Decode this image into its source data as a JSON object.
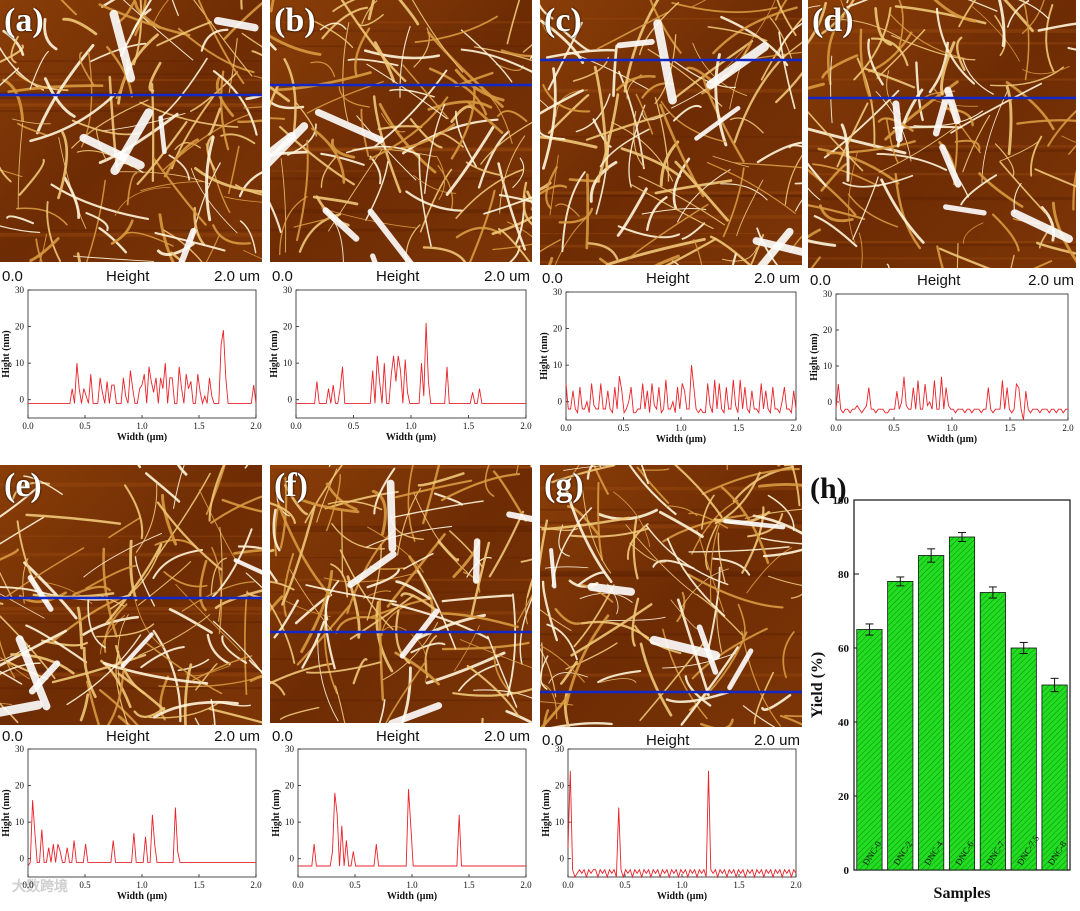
{
  "scale_bar": {
    "start": "0.0",
    "label": "Height",
    "end": "2.0 um"
  },
  "profile_axes": {
    "xlabel": "Width (μm)",
    "ylabel": "Hight (nm)",
    "y_ticks": [
      "0",
      "10",
      "20",
      "30"
    ],
    "x_ticks": [
      "0.0",
      "0.5",
      "1.0",
      "1.5",
      "2.0"
    ]
  },
  "panels": [
    {
      "letter": "(a)",
      "profile": [
        -1,
        -1,
        -1,
        -1,
        -1,
        -1,
        -1,
        -1,
        -1,
        -1,
        -1,
        -1,
        -1,
        -1,
        -1,
        -1,
        -1,
        -1,
        -1,
        3,
        -1,
        10,
        3,
        -1,
        3,
        1,
        -1,
        7,
        -1,
        -1,
        -1,
        6,
        2,
        -1,
        5,
        -1,
        4,
        4,
        -1,
        -1,
        -1,
        6,
        1,
        -1,
        8,
        3,
        -1,
        -1,
        3,
        4,
        7,
        -1,
        9,
        5,
        2,
        6,
        -1,
        6,
        3,
        10,
        -1,
        6,
        6,
        -1,
        -1,
        9,
        3,
        -1,
        7,
        3,
        5,
        -1,
        -1,
        7,
        2,
        -1,
        1,
        -1,
        6,
        1,
        -1,
        -1,
        -1,
        15,
        19,
        6,
        -1,
        -1,
        -1,
        -1,
        -1,
        -1,
        -1,
        -1,
        -1,
        -1,
        -1,
        4,
        -1
      ]
    },
    {
      "letter": "(b)",
      "profile": [
        -1,
        -1,
        -1,
        -1,
        -1,
        -1,
        -1,
        -1,
        -1,
        5,
        -1,
        -1,
        -1,
        -1,
        3,
        -1,
        4,
        -1,
        -1,
        3,
        9,
        -1,
        -1,
        -1,
        -1,
        -1,
        -1,
        -1,
        -1,
        -1,
        -1,
        -1,
        -1,
        8,
        -1,
        12,
        5,
        -1,
        10,
        -1,
        -1,
        7,
        12,
        5,
        12,
        8,
        -1,
        11,
        2,
        -1,
        -1,
        -1,
        -1,
        -1,
        10,
        1,
        21,
        5,
        -1,
        -1,
        -1,
        -1,
        -1,
        -1,
        -1,
        9,
        -1,
        -1,
        -1,
        -1,
        -1,
        -1,
        -1,
        -1,
        -1,
        -1,
        2,
        -1,
        -1,
        3,
        -1,
        -1,
        -1,
        -1,
        -1,
        -1,
        -1,
        -1,
        -1,
        -1,
        -1,
        -1,
        -1,
        -1,
        -1,
        -1,
        -1,
        -1,
        -1,
        -1
      ]
    },
    {
      "letter": "(c)",
      "profile": [
        5,
        -2,
        -2,
        3,
        -2,
        -3,
        4,
        -2,
        -2,
        0,
        -3,
        5,
        -1,
        -2,
        -2,
        5,
        -2,
        -2,
        3,
        -2,
        -3,
        4,
        -2,
        7,
        3,
        -3,
        -2,
        0,
        4,
        -3,
        -3,
        -2,
        -2,
        5,
        -2,
        3,
        -3,
        5,
        -1,
        -2,
        4,
        -3,
        -2,
        6,
        -2,
        -2,
        0,
        -3,
        4,
        -2,
        5,
        3,
        -2,
        -2,
        10,
        4,
        -2,
        -3,
        -2,
        -3,
        -3,
        5,
        -1,
        -3,
        6,
        -2,
        5,
        -2,
        -3,
        4,
        -2,
        -2,
        6,
        -1,
        -3,
        6,
        -2,
        4,
        -2,
        -3,
        3,
        -2,
        -2,
        -3,
        5,
        -2,
        3,
        -2,
        -3,
        4,
        -2,
        -2,
        -3,
        0,
        4,
        -2,
        -2,
        -3,
        3,
        -2
      ]
    },
    {
      "letter": "(d)",
      "profile": [
        -2,
        5,
        -2,
        -3,
        -2,
        -2,
        -3,
        -2,
        -2,
        -1,
        -2,
        -3,
        -2,
        -1,
        4,
        -2,
        -2,
        -3,
        -2,
        -2,
        -2,
        -3,
        -3,
        -2,
        -2,
        -2,
        3,
        -2,
        0,
        7,
        -1,
        -2,
        -2,
        4,
        -2,
        6,
        -2,
        -2,
        5,
        -1,
        0,
        -2,
        6,
        -2,
        -2,
        7,
        -2,
        4,
        -1,
        -2,
        -2,
        -3,
        -2,
        -2,
        -2,
        -3,
        -2,
        -2,
        -3,
        -2,
        -2,
        -2,
        -3,
        -2,
        -2,
        4,
        -2,
        -3,
        -2,
        -2,
        -2,
        6,
        -2,
        4,
        -2,
        -3,
        -2,
        5,
        4,
        -2,
        -5,
        3,
        -2,
        -3,
        -2,
        -2,
        -2,
        -3,
        -2,
        -2,
        -2,
        -3,
        -2,
        -2,
        -3,
        -2,
        -2,
        -3,
        -2,
        -2
      ]
    },
    {
      "letter": "(e)",
      "profile": [
        -2,
        -1,
        16,
        7,
        -1,
        -1,
        8,
        -1,
        -1,
        3,
        -1,
        4,
        -1,
        4,
        2,
        -1,
        -1,
        3,
        -1,
        -1,
        5,
        -1,
        -1,
        -1,
        -1,
        4,
        -1,
        -1,
        -1,
        -1,
        -1,
        -1,
        -1,
        -1,
        -1,
        -1,
        -1,
        5,
        -1,
        -1,
        -1,
        -1,
        -1,
        -1,
        -1,
        -1,
        7,
        -1,
        -1,
        -1,
        -1,
        6,
        -1,
        -1,
        12,
        4,
        -1,
        -1,
        -1,
        -1,
        -1,
        -1,
        -1,
        -1,
        14,
        2,
        -1,
        -1,
        -1,
        -1,
        -1,
        -1,
        -1,
        -1,
        -1,
        -1,
        -1,
        -1,
        -1,
        -1,
        -1,
        -1,
        -1,
        -1,
        -1,
        -1,
        -1,
        -1,
        -1,
        -1,
        -1,
        -1,
        -1,
        -1,
        -1,
        -1,
        -1,
        -1,
        -1,
        -1
      ]
    },
    {
      "letter": "(f)",
      "profile": [
        -2,
        -2,
        -2,
        -2,
        -2,
        -2,
        -2,
        4,
        -2,
        -2,
        -2,
        -2,
        -2,
        -2,
        -2,
        2,
        18,
        12,
        -2,
        9,
        -2,
        5,
        -2,
        -2,
        2,
        -2,
        -2,
        -2,
        -2,
        -2,
        -2,
        -2,
        -2,
        -2,
        4,
        -2,
        -2,
        -2,
        -2,
        -2,
        -2,
        -2,
        -2,
        -2,
        -2,
        -2,
        -2,
        -2,
        19,
        9,
        -2,
        -2,
        -2,
        -2,
        -2,
        -2,
        -2,
        -2,
        -2,
        -2,
        -2,
        -2,
        -2,
        -2,
        -2,
        -2,
        -2,
        -2,
        -2,
        -2,
        12,
        -2,
        -2,
        -2,
        -2,
        -2,
        -2,
        -2,
        -2,
        -2,
        -2,
        -2,
        -2,
        -2,
        -2,
        -2,
        -2,
        -2,
        -2,
        -2,
        -2,
        -2,
        -2,
        -2,
        -2,
        -2,
        -2,
        -2,
        -2,
        -2
      ]
    },
    {
      "letter": "(g)",
      "profile": [
        3,
        24,
        -3,
        -5,
        -4,
        -3,
        -4,
        -3,
        -5,
        -3,
        -4,
        -3,
        -3,
        -5,
        -3,
        -4,
        -3,
        -5,
        -3,
        -4,
        -3,
        -5,
        14,
        -3,
        -5,
        -3,
        -4,
        -3,
        -5,
        -3,
        -4,
        -3,
        -5,
        -3,
        -4,
        -3,
        -5,
        -3,
        -4,
        -3,
        -5,
        -3,
        -4,
        -3,
        -5,
        -3,
        -4,
        -3,
        -5,
        -3,
        -4,
        -3,
        -5,
        -3,
        -4,
        -3,
        -5,
        -3,
        -4,
        -3,
        -5,
        24,
        -3,
        -4,
        -3,
        -5,
        -3,
        -4,
        -3,
        -5,
        -3,
        -4,
        -3,
        -5,
        -3,
        -4,
        -3,
        -5,
        -3,
        -4,
        -3,
        -5,
        -3,
        -4,
        -3,
        -5,
        -3,
        -4,
        -3,
        -5,
        -3,
        -4,
        -3,
        -5,
        -3,
        -4,
        -3,
        -5,
        -3,
        -4
      ]
    }
  ],
  "chart_data": {
    "type": "bar",
    "letter": "(h)",
    "categories": [
      "DNC-0",
      "DNC-2",
      "DNC-4",
      "DNC-6",
      "DNC-7",
      "DNC-7.5",
      "DNC-8"
    ],
    "values": [
      65,
      78,
      85,
      90,
      75,
      60,
      50
    ],
    "errors": [
      1.5,
      1.2,
      1.8,
      1.2,
      1.5,
      1.5,
      1.8
    ],
    "title": "",
    "xlabel": "Samples",
    "ylabel": "Yield (%)",
    "ylim": [
      0,
      100
    ],
    "y_ticks": [
      "0",
      "20",
      "40",
      "60",
      "80",
      "100"
    ],
    "bar_color": "#22dd22"
  },
  "watermark": "大数跨境"
}
